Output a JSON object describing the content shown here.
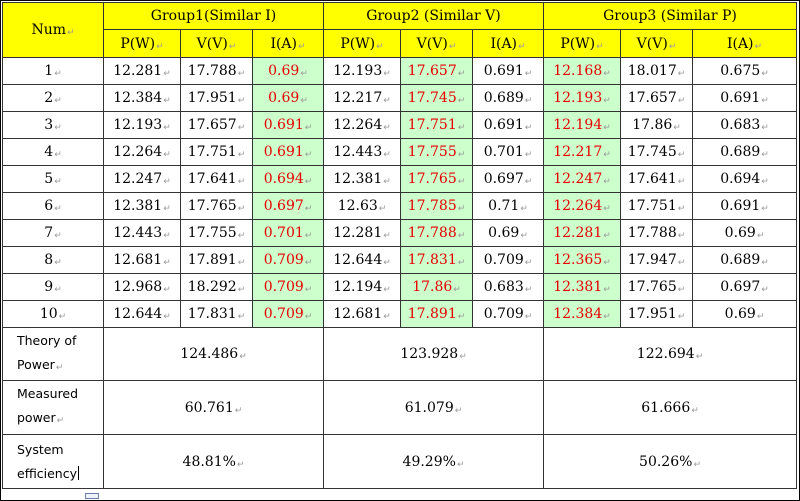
{
  "colors": {
    "header_bg": "#ffff00",
    "highlight_bg": "#ccffcc",
    "highlight_text": "#e60000",
    "mark": "#999999"
  },
  "paragraph_mark": "↵",
  "header": {
    "num": "Num",
    "groups": [
      "Group1(Similar  I)",
      "Group2  (Similar  V)",
      "Group3  (Similar  P)"
    ],
    "subcols": [
      "P(W)",
      "V(V)",
      "I(A)"
    ]
  },
  "rows": [
    [
      "1",
      "12.281",
      "17.788",
      "0.69",
      "12.193",
      "17.657",
      "0.691",
      "12.168",
      "18.017",
      "0.675"
    ],
    [
      "2",
      "12.384",
      "17.951",
      "0.69",
      "12.217",
      "17.745",
      "0.689",
      "12.193",
      "17.657",
      "0.691"
    ],
    [
      "3",
      "12.193",
      "17.657",
      "0.691",
      "12.264",
      "17.751",
      "0.691",
      "12.194",
      "17.86",
      "0.683"
    ],
    [
      "4",
      "12.264",
      "17.751",
      "0.691",
      "12.443",
      "17.755",
      "0.701",
      "12.217",
      "17.745",
      "0.689"
    ],
    [
      "5",
      "12.247",
      "17.641",
      "0.694",
      "12.381",
      "17.765",
      "0.697",
      "12.247",
      "17.641",
      "0.694"
    ],
    [
      "6",
      "12.381",
      "17.765",
      "0.697",
      "12.63",
      "17.785",
      "0.71",
      "12.264",
      "17.751",
      "0.691"
    ],
    [
      "7",
      "12.443",
      "17.755",
      "0.701",
      "12.281",
      "17.788",
      "0.69",
      "12.281",
      "17.788",
      "0.69"
    ],
    [
      "8",
      "12.681",
      "17.891",
      "0.709",
      "12.644",
      "17.831",
      "0.709",
      "12.365",
      "17.947",
      "0.689"
    ],
    [
      "9",
      "12.968",
      "18.292",
      "0.709",
      "12.194",
      "17.86",
      "0.683",
      "12.381",
      "17.765",
      "0.697"
    ],
    [
      "10",
      "12.644",
      "17.831",
      "0.709",
      "12.681",
      "17.891",
      "0.709",
      "12.384",
      "17.951",
      "0.69"
    ]
  ],
  "summary": [
    {
      "label": [
        "Theory of",
        "Power"
      ],
      "values": [
        "124.486",
        "123.928",
        "122.694"
      ]
    },
    {
      "label": [
        "Measured",
        "power"
      ],
      "values": [
        "60.761",
        "61.079",
        "61.666"
      ]
    },
    {
      "label": [
        "System",
        "efficiency"
      ],
      "values": [
        "48.81%",
        "49.29%",
        "50.26%"
      ]
    }
  ]
}
